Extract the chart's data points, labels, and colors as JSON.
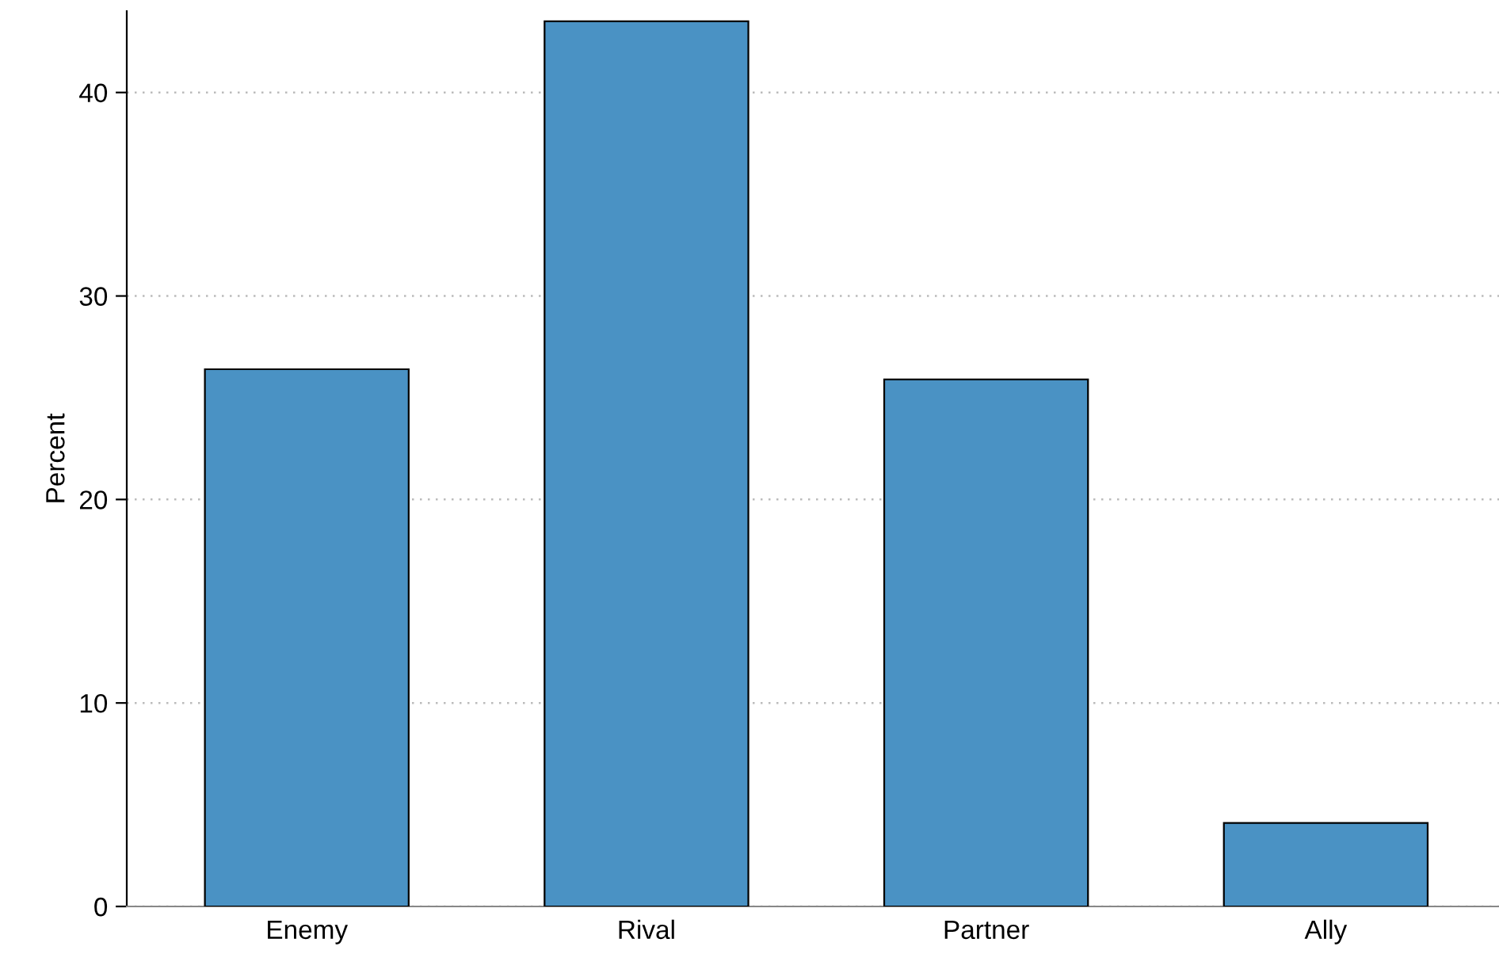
{
  "chart_data": {
    "type": "bar",
    "ylabel": "Percent",
    "categories": [
      "Enemy",
      "Rival",
      "Partner",
      "Ally"
    ],
    "values": [
      26.4,
      43.5,
      25.9,
      4.1
    ],
    "color": "#4a92c4",
    "ylim": [
      0,
      44
    ],
    "yticks": [
      0,
      10,
      20,
      30,
      40
    ],
    "grid": "y",
    "legend": false
  }
}
